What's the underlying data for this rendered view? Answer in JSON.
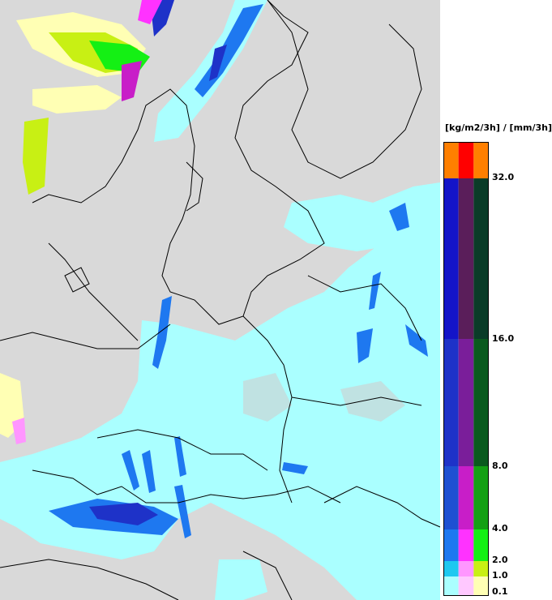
{
  "legend": {
    "title": "[kg/m2/3h] / [mm/3h]",
    "thresholds": [
      "32.0",
      "16.0",
      "8.0",
      "4.0",
      "2.0",
      "1.0",
      "0.1"
    ],
    "bands": [
      {
        "range": ">32",
        "colors": [
          "#ff7f00",
          "#ff0000",
          "#ff7f00"
        ]
      },
      {
        "range": "16-32",
        "colors": [
          "#1414c8",
          "#5a1e5a",
          "#0a3c28"
        ]
      },
      {
        "range": "8-16",
        "colors": [
          "#1e32c8",
          "#7a1e9a",
          "#0a5a1e"
        ]
      },
      {
        "range": "4-8",
        "colors": [
          "#1e50d2",
          "#c81ec8",
          "#14a014"
        ]
      },
      {
        "range": "2-4",
        "colors": [
          "#1e78f0",
          "#ff32ff",
          "#14f014"
        ]
      },
      {
        "range": "1-2",
        "colors": [
          "#1ec8f0",
          "#ff96ff",
          "#c8f014"
        ]
      },
      {
        "range": "0.1-1",
        "colors": [
          "#aaffff",
          "#ffc8ff",
          "#ffffb4"
        ]
      }
    ]
  },
  "colors": {
    "background": "#d9d9d9",
    "light_cyan": "#aaffff",
    "border_lines": "#000000"
  }
}
